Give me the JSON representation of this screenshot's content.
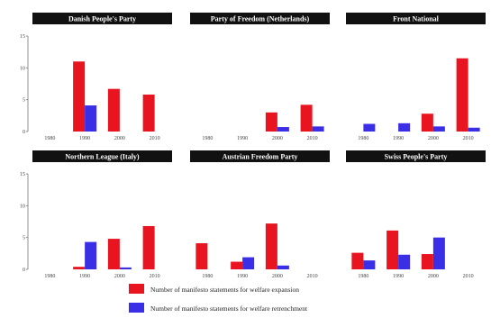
{
  "chart_data": {
    "type": "bar",
    "categories": [
      "1980",
      "1990",
      "2000",
      "2010"
    ],
    "y_ticks": [
      0,
      5,
      10,
      15
    ],
    "ylim": [
      0,
      15
    ],
    "grid": false,
    "legend_position": "bottom-center",
    "legend": [
      {
        "label": "Number of manifesto statements for welfare expansion",
        "color": "#e8141f"
      },
      {
        "label": "Number of manifesto statements for welfare retrenchment",
        "color": "#3a2ee6"
      }
    ],
    "colors": {
      "expansion": "#e8141f",
      "retrenchment": "#3a2ee6",
      "title_bar": "#111111"
    },
    "panels": [
      {
        "title": "Danish People's Party",
        "series": [
          {
            "values": [
              0,
              11,
              6.7,
              5.8
            ]
          },
          {
            "values": [
              0,
              4.1,
              0,
              0
            ]
          }
        ]
      },
      {
        "title": "Party of Freedom (Netherlands)",
        "series": [
          {
            "values": [
              0,
              0,
              3.0,
              4.2
            ]
          },
          {
            "values": [
              0,
              0,
              0.7,
              0.8
            ]
          }
        ]
      },
      {
        "title": "Front National",
        "series": [
          {
            "values": [
              0,
              0,
              2.8,
              11.5
            ]
          },
          {
            "values": [
              1.2,
              1.3,
              0.8,
              0.6
            ]
          }
        ]
      },
      {
        "title": "Northern League (Italy)",
        "series": [
          {
            "values": [
              0,
              0.4,
              4.8,
              6.8
            ]
          },
          {
            "values": [
              0,
              4.3,
              0.3,
              0
            ]
          }
        ]
      },
      {
        "title": "Austrian Freedom Party",
        "series": [
          {
            "values": [
              4.1,
              1.2,
              7.2,
              0
            ]
          },
          {
            "values": [
              0,
              1.9,
              0.6,
              0
            ]
          }
        ]
      },
      {
        "title": "Swiss People's Party",
        "series": [
          {
            "values": [
              2.6,
              6.1,
              2.4,
              0
            ]
          },
          {
            "values": [
              1.4,
              2.3,
              5.0,
              0
            ]
          }
        ]
      }
    ]
  }
}
